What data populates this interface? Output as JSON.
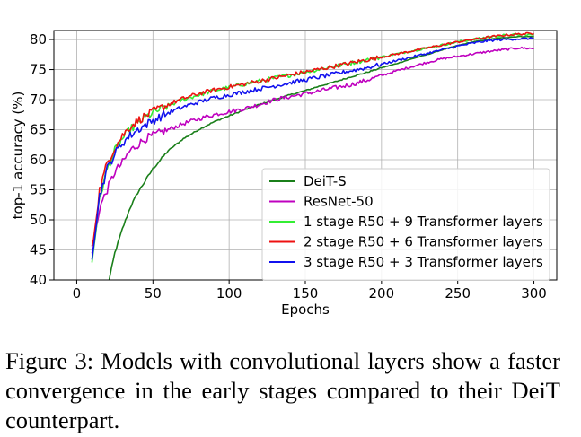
{
  "chart_data": {
    "type": "line",
    "title": "",
    "xlabel": "Epochs",
    "ylabel": "top-1 accuracy (%)",
    "xlim": [
      -15,
      315
    ],
    "ylim": [
      40,
      81.5
    ],
    "xticks": [
      0,
      50,
      100,
      150,
      200,
      250,
      300
    ],
    "yticks": [
      40,
      45,
      50,
      55,
      60,
      65,
      70,
      75,
      80
    ],
    "grid": true,
    "legend_position": "lower-right",
    "series": [
      {
        "name": "DeiT-S",
        "color": "#1a7f1a",
        "x": [
          20,
          25,
          30,
          35,
          40,
          45,
          50,
          60,
          70,
          80,
          90,
          100,
          110,
          120,
          130,
          140,
          150,
          160,
          170,
          180,
          190,
          200,
          210,
          220,
          230,
          240,
          250,
          260,
          270,
          280,
          290,
          300
        ],
        "y": [
          38.5,
          44.5,
          48.5,
          52.0,
          54.5,
          56.5,
          58.5,
          61.5,
          63.5,
          65.0,
          66.3,
          67.3,
          68.3,
          69.2,
          70.0,
          70.8,
          71.5,
          72.3,
          73.0,
          73.8,
          74.5,
          75.3,
          76.0,
          76.8,
          77.5,
          78.3,
          79.0,
          79.6,
          80.0,
          80.3,
          80.5,
          80.5
        ]
      },
      {
        "name": "ResNet-50",
        "color": "#bf00bf",
        "x": [
          10,
          15,
          20,
          25,
          30,
          35,
          40,
          45,
          50,
          60,
          70,
          80,
          90,
          100,
          110,
          120,
          130,
          140,
          150,
          160,
          170,
          180,
          190,
          200,
          210,
          220,
          230,
          240,
          250,
          260,
          270,
          280,
          290,
          300
        ],
        "y": [
          44.0,
          52.0,
          55.0,
          58.0,
          59.5,
          61.5,
          62.5,
          63.5,
          64.0,
          65.0,
          66.0,
          66.8,
          67.5,
          68.0,
          68.5,
          69.2,
          70.0,
          70.5,
          71.0,
          71.5,
          72.0,
          72.5,
          73.2,
          74.0,
          74.8,
          75.5,
          76.2,
          76.8,
          77.2,
          77.6,
          78.0,
          78.3,
          78.6,
          78.5
        ]
      },
      {
        "name": "1 stage R50 + 9 Transformer layers",
        "color": "#33ee33",
        "x": [
          10,
          15,
          20,
          25,
          30,
          35,
          40,
          45,
          50,
          60,
          70,
          80,
          90,
          100,
          110,
          120,
          130,
          140,
          150,
          160,
          170,
          180,
          190,
          200,
          210,
          220,
          230,
          240,
          250,
          260,
          270,
          280,
          290,
          300
        ],
        "y": [
          43.0,
          53.5,
          58.5,
          61.5,
          63.5,
          65.0,
          66.0,
          67.0,
          67.8,
          69.0,
          70.0,
          70.8,
          71.5,
          72.0,
          72.6,
          73.1,
          73.6,
          74.1,
          74.6,
          75.1,
          75.6,
          76.1,
          76.6,
          77.1,
          77.6,
          78.1,
          78.6,
          79.1,
          79.6,
          80.0,
          80.4,
          80.7,
          80.8,
          80.8
        ]
      },
      {
        "name": "2 stage R50 + 6 Transformer layers",
        "color": "#ee1111",
        "x": [
          10,
          15,
          20,
          25,
          30,
          35,
          40,
          45,
          50,
          60,
          70,
          80,
          90,
          100,
          110,
          120,
          130,
          140,
          150,
          160,
          170,
          180,
          190,
          200,
          210,
          220,
          230,
          240,
          250,
          260,
          270,
          280,
          290,
          300
        ],
        "y": [
          45.0,
          55.0,
          59.5,
          62.0,
          64.0,
          65.5,
          66.5,
          67.3,
          68.0,
          69.2,
          70.2,
          71.0,
          71.6,
          72.1,
          72.6,
          73.1,
          73.6,
          74.1,
          74.6,
          75.1,
          75.6,
          76.1,
          76.6,
          77.1,
          77.6,
          78.1,
          78.6,
          79.1,
          79.6,
          80.0,
          80.4,
          80.7,
          80.9,
          81.0
        ]
      },
      {
        "name": "3 stage R50 + 3 Transformer layers",
        "color": "#1111ee",
        "x": [
          10,
          15,
          20,
          25,
          30,
          35,
          40,
          45,
          50,
          60,
          70,
          80,
          90,
          100,
          110,
          120,
          130,
          140,
          150,
          160,
          170,
          180,
          190,
          200,
          210,
          220,
          230,
          240,
          250,
          260,
          270,
          280,
          290,
          300
        ],
        "y": [
          44.0,
          54.0,
          58.5,
          61.0,
          62.8,
          64.0,
          65.0,
          65.8,
          66.5,
          67.8,
          68.8,
          69.6,
          70.3,
          70.8,
          71.3,
          71.8,
          72.3,
          72.8,
          73.3,
          73.8,
          74.3,
          74.8,
          75.3,
          75.9,
          76.5,
          77.1,
          77.7,
          78.3,
          78.9,
          79.4,
          79.8,
          80.0,
          80.1,
          80.2
        ]
      }
    ]
  },
  "caption": {
    "text": "Figure 3:  Models with convolutional layers show a faster convergence in the early stages compared to their DeiT counterpart."
  }
}
